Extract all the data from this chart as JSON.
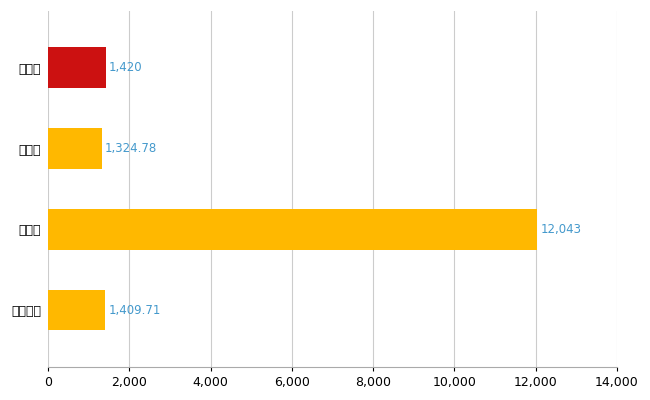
{
  "categories": [
    "全国平均",
    "県最大",
    "県平均",
    "浦和区"
  ],
  "values": [
    1409.71,
    12043,
    1324.78,
    1420
  ],
  "colors": [
    "#FFB800",
    "#FFB800",
    "#FFB800",
    "#CC1111"
  ],
  "labels": [
    "1,409.71",
    "12,043",
    "1,324.78",
    "1,420"
  ],
  "xlim": [
    0,
    14000
  ],
  "xticks": [
    0,
    2000,
    4000,
    6000,
    8000,
    10000,
    12000,
    14000
  ],
  "background_color": "#ffffff",
  "grid_color": "#cccccc",
  "label_color": "#4499cc",
  "label_fontsize": 8.5,
  "tick_fontsize": 9,
  "ytick_fontsize": 9,
  "bar_height": 0.5
}
